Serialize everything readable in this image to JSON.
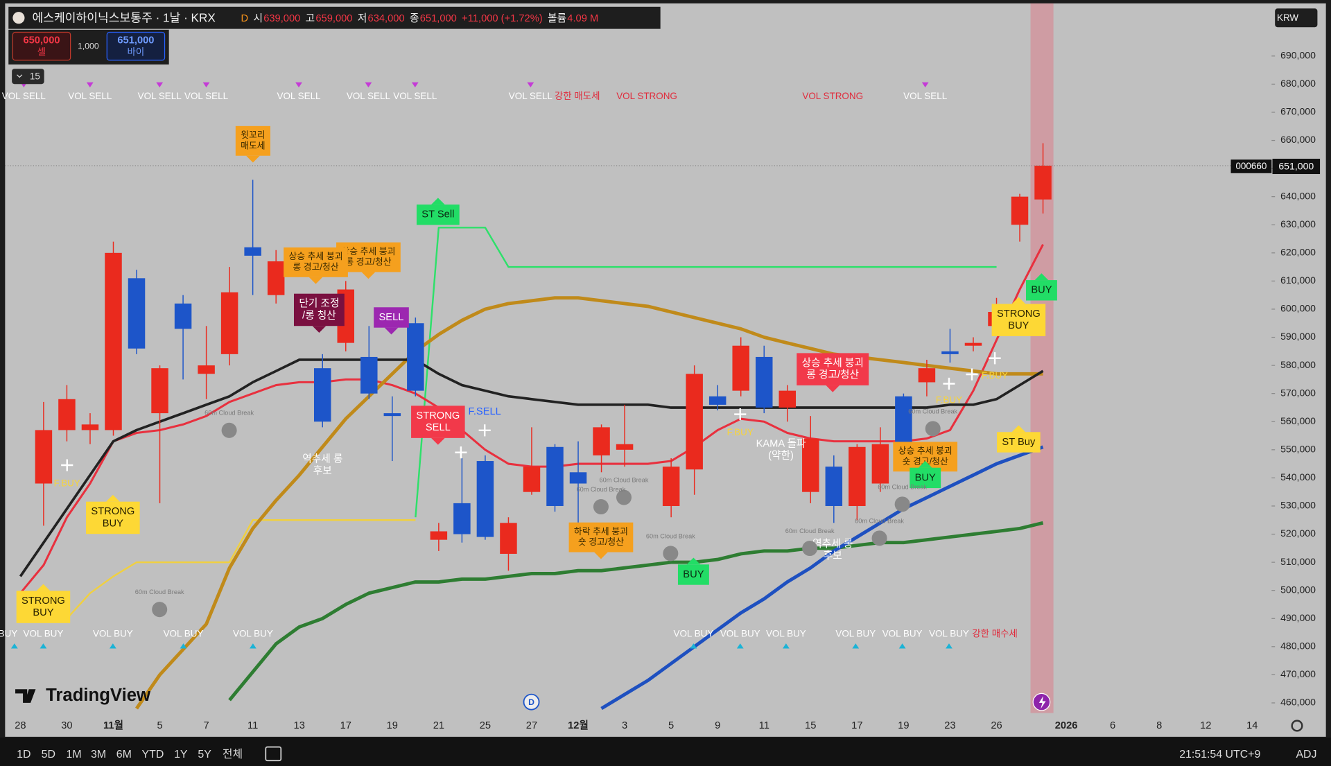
{
  "header": {
    "symbol": "에스케이하이닉스보통주 · 1날 · KRX",
    "feed": "D",
    "open_label": "시",
    "open": "639,000",
    "high_label": "고",
    "high": "659,000",
    "low_label": "저",
    "low": "634,000",
    "close_label": "종",
    "close": "651,000",
    "change": "+11,000 (+1.72%)",
    "volume_label": "볼륨",
    "volume": "4.09 M"
  },
  "order_panel": {
    "sell_price": "650,000",
    "sell_label": "셀",
    "qty": "1,000",
    "buy_price": "651,000",
    "buy_label": "바이"
  },
  "indicator_count": "15",
  "currency": "KRW",
  "price_tag": {
    "ticker": "000660",
    "price": "651,000"
  },
  "logo": "TradingView",
  "event_marker": "D",
  "toolbar": {
    "ranges": [
      "1D",
      "5D",
      "1M",
      "3M",
      "6M",
      "YTD",
      "1Y",
      "5Y",
      "전체"
    ],
    "clock": "21:51:54 UTC+9",
    "adjust": "ADJ"
  },
  "chart_data": {
    "type": "candlestick",
    "categories": [
      "28",
      null,
      "30",
      null,
      "11월",
      null,
      "5",
      null,
      "7",
      null,
      "11",
      null,
      "13",
      null,
      "17",
      null,
      "19",
      null,
      "21",
      null,
      "25",
      null,
      "27",
      null,
      "12월",
      null,
      "3",
      null,
      "5",
      null,
      "9",
      null,
      "11",
      null,
      "15",
      null,
      "17",
      null,
      "19",
      null,
      "23",
      null,
      "26",
      null,
      null,
      "2026",
      null,
      "6",
      null,
      "8",
      null,
      "12",
      null,
      "14"
    ],
    "open": [
      null,
      538000,
      557000,
      557000,
      557000,
      611000,
      563000,
      602000,
      577000,
      584000,
      622000,
      605000,
      null,
      579000,
      588000,
      583000,
      563000,
      595000,
      518000,
      531000,
      546000,
      513000,
      535000,
      551000,
      542000,
      548000,
      550000,
      null,
      530000,
      543000,
      569000,
      571000,
      583000,
      565000,
      535000,
      544000,
      530000,
      538000,
      569000,
      574000,
      585000,
      587000,
      594000,
      630000,
      639000,
      null,
      null,
      null,
      null,
      null,
      null,
      null,
      null,
      null
    ],
    "high": [
      null,
      567000,
      573000,
      563000,
      624000,
      614000,
      580000,
      605000,
      594000,
      615000,
      646000,
      621000,
      null,
      584000,
      610000,
      594000,
      569000,
      597000,
      524000,
      547000,
      548000,
      526000,
      558000,
      552000,
      553000,
      559000,
      566000,
      null,
      547000,
      580000,
      573000,
      590000,
      587000,
      573000,
      562000,
      548000,
      552000,
      558000,
      570000,
      582000,
      593000,
      590000,
      604000,
      641000,
      659000,
      null,
      null,
      null,
      null,
      null,
      null,
      null,
      null,
      null
    ],
    "low": [
      null,
      523000,
      553000,
      552000,
      555000,
      584000,
      531000,
      575000,
      568000,
      580000,
      605000,
      602000,
      null,
      558000,
      585000,
      568000,
      546000,
      569000,
      514000,
      517000,
      518000,
      507000,
      534000,
      528000,
      521000,
      542000,
      544000,
      null,
      526000,
      534000,
      564000,
      569000,
      563000,
      560000,
      531000,
      524000,
      525000,
      535000,
      545000,
      569000,
      581000,
      585000,
      592000,
      624000,
      634000,
      null,
      null,
      null,
      null,
      null,
      null,
      null,
      null,
      null
    ],
    "close": [
      null,
      557000,
      568000,
      559000,
      620000,
      586000,
      579000,
      593000,
      580000,
      606000,
      619000,
      617000,
      null,
      560000,
      607000,
      570000,
      562000,
      571000,
      521000,
      520000,
      519000,
      524000,
      544000,
      530000,
      538000,
      558000,
      552000,
      null,
      544000,
      577000,
      566000,
      587000,
      565000,
      571000,
      554000,
      530000,
      551000,
      552000,
      547000,
      579000,
      584000,
      588000,
      599000,
      640000,
      651000,
      null,
      null,
      null,
      null,
      null,
      null,
      null,
      null,
      null
    ],
    "up_color": "#ea2a1e",
    "down_color": "#1d55c9",
    "lines": [
      {
        "color": "#f0d040",
        "width": 2,
        "values": [
          null,
          490000,
          490000,
          499000,
          505000,
          510000,
          510000,
          510000,
          510000,
          510000,
          525000,
          525000,
          525000,
          525000,
          525000,
          525000,
          525000,
          525000,
          null,
          null,
          null,
          null,
          null,
          null,
          null,
          null,
          null,
          null,
          null,
          null,
          null,
          null,
          null,
          null,
          null,
          null,
          null,
          null,
          null,
          null,
          null,
          null,
          null,
          null,
          null,
          null,
          null,
          null,
          null,
          null,
          null,
          null,
          null,
          null
        ]
      },
      {
        "color": "#2ee06a",
        "width": 2,
        "values": [
          null,
          null,
          null,
          null,
          null,
          null,
          null,
          null,
          null,
          null,
          null,
          null,
          null,
          null,
          null,
          null,
          null,
          526000,
          629000,
          629000,
          629000,
          615000,
          615000,
          615000,
          615000,
          615000,
          615000,
          615000,
          615000,
          615000,
          615000,
          615000,
          615000,
          615000,
          615000,
          615000,
          615000,
          615000,
          615000,
          615000,
          615000,
          615000,
          615000,
          null,
          null,
          null,
          null,
          null,
          null,
          null,
          null,
          null,
          null,
          null
        ]
      },
      {
        "color": "#2e7d32",
        "width": 4,
        "values": [
          null,
          null,
          null,
          null,
          null,
          null,
          null,
          null,
          null,
          461000,
          471000,
          481000,
          487000,
          490000,
          495000,
          499000,
          501000,
          503000,
          503000,
          504000,
          504000,
          505000,
          506000,
          506000,
          507000,
          507000,
          508000,
          509000,
          510000,
          510000,
          511000,
          513000,
          514000,
          514000,
          515000,
          515000,
          516000,
          517000,
          517000,
          518000,
          519000,
          520000,
          521000,
          522000,
          524000,
          null,
          null,
          null,
          null,
          null,
          null,
          null,
          null,
          null
        ]
      },
      {
        "color": "#1e50c0",
        "width": 4,
        "values": [
          null,
          null,
          null,
          null,
          null,
          null,
          null,
          null,
          null,
          null,
          null,
          null,
          null,
          null,
          null,
          null,
          null,
          null,
          null,
          null,
          null,
          null,
          null,
          null,
          null,
          458000,
          463000,
          468000,
          474000,
          480000,
          486000,
          492000,
          497000,
          503000,
          508000,
          514000,
          519000,
          524000,
          529000,
          533000,
          537000,
          541000,
          545000,
          548000,
          551000,
          null,
          null,
          null,
          null,
          null,
          null,
          null,
          null,
          null
        ]
      },
      {
        "color": "#e8303e",
        "width": 2.5,
        "values": [
          499000,
          509000,
          526000,
          538000,
          553000,
          556000,
          557000,
          559000,
          562000,
          567000,
          570000,
          573000,
          574000,
          574000,
          575000,
          575000,
          573000,
          570000,
          565000,
          557000,
          550000,
          545000,
          544000,
          544000,
          545000,
          545000,
          545000,
          545000,
          546000,
          551000,
          557000,
          561000,
          560000,
          556000,
          554000,
          553000,
          553000,
          553000,
          553000,
          554000,
          557000,
          571000,
          589000,
          607000,
          623000,
          null,
          null,
          null,
          null,
          null,
          null,
          null,
          null,
          null
        ]
      },
      {
        "color": "#c08a1a",
        "width": 4,
        "values": [
          null,
          null,
          null,
          null,
          null,
          458000,
          470000,
          479000,
          488000,
          508000,
          522000,
          532000,
          541000,
          551000,
          561000,
          569000,
          577000,
          585000,
          591000,
          596000,
          600000,
          602000,
          603000,
          604000,
          604000,
          603000,
          602000,
          601000,
          599000,
          597000,
          595000,
          593000,
          590000,
          588000,
          586000,
          584000,
          583000,
          582000,
          581000,
          580000,
          579000,
          578000,
          577000,
          577000,
          577000,
          null,
          null,
          null,
          null,
          null,
          null,
          null,
          null,
          null
        ]
      },
      {
        "color": "#222222",
        "width": 3,
        "values": [
          505000,
          517000,
          529000,
          541000,
          553000,
          557000,
          560000,
          563000,
          566000,
          569000,
          574000,
          578000,
          582000,
          582000,
          582000,
          582000,
          582000,
          582000,
          577000,
          573000,
          571000,
          569000,
          568000,
          567000,
          566000,
          566000,
          566000,
          566000,
          565000,
          565000,
          565000,
          565000,
          565000,
          565000,
          565000,
          565000,
          565000,
          565000,
          565000,
          565000,
          566000,
          566000,
          568000,
          573000,
          578000,
          null,
          null,
          null,
          null,
          null,
          null,
          null,
          null,
          null
        ]
      }
    ],
    "ylim": [
      456400,
      707500
    ],
    "yticks": [
      {
        "value": 460000,
        "label": "460,000"
      },
      {
        "value": 470000,
        "label": "470,000"
      },
      {
        "value": 480000,
        "label": "480,000"
      },
      {
        "value": 490000,
        "label": "490,000"
      },
      {
        "value": 500000,
        "label": "500,000"
      },
      {
        "value": 510000,
        "label": "510,000"
      },
      {
        "value": 520000,
        "label": "520,000"
      },
      {
        "value": 530000,
        "label": "530,000"
      },
      {
        "value": 540000,
        "label": "540,000"
      },
      {
        "value": 550000,
        "label": "550,000"
      },
      {
        "value": 560000,
        "label": "560,000"
      },
      {
        "value": 570000,
        "label": "570,000"
      },
      {
        "value": 580000,
        "label": "580,000"
      },
      {
        "value": 590000,
        "label": "590,000"
      },
      {
        "value": 600000,
        "label": "600,000"
      },
      {
        "value": 610000,
        "label": "610,000"
      },
      {
        "value": 620000,
        "label": "620,000"
      },
      {
        "value": 630000,
        "label": "630,000"
      },
      {
        "value": 640000,
        "label": "640,000"
      },
      {
        "value": 650000,
        "label": "650,000"
      },
      {
        "value": 660000,
        "label": "660,000"
      },
      {
        "value": 670000,
        "label": "670,000"
      },
      {
        "value": 680000,
        "label": "680,000"
      },
      {
        "value": 690000,
        "label": "690,000"
      }
    ],
    "last_price": 651000,
    "grid": false,
    "top_signals": [
      {
        "text": "VOL SELL",
        "style": "white"
      },
      {
        "text": "VOL SELL",
        "style": "white"
      },
      {
        "text": "VOL SELL",
        "style": "white"
      },
      {
        "text": "VOL SELL",
        "style": "white"
      },
      {
        "text": "VOL SELL",
        "style": "white"
      },
      {
        "text": "VOL SELL",
        "style": "white"
      },
      {
        "text": "VOL SELL",
        "style": "white"
      },
      {
        "text": "VOL SELL",
        "style": "white"
      },
      {
        "text": "강한 매도세",
        "style": "red"
      },
      {
        "text": "VOL STRONG",
        "style": "red"
      },
      {
        "text": "VOL STRONG",
        "style": "red"
      },
      {
        "text": "VOL SELL",
        "style": "white"
      }
    ],
    "bottom_signals": [
      {
        "text": "VOL BUY",
        "style": "white"
      },
      {
        "text": "VOL BUY",
        "style": "white"
      },
      {
        "text": "VOL BUY",
        "style": "white"
      },
      {
        "text": "VOL BUY",
        "style": "white"
      },
      {
        "text": "VOL BUY",
        "style": "white"
      },
      {
        "text": "VOL BUY",
        "style": "white"
      },
      {
        "text": "VOL BUY",
        "style": "white"
      },
      {
        "text": "VOL BUY",
        "style": "white"
      },
      {
        "text": "VOL BUY",
        "style": "white"
      },
      {
        "text": "VOL BUY",
        "style": "white"
      },
      {
        "text": "VOL BUY",
        "style": "white"
      },
      {
        "text": "강한 매수세",
        "style": "red"
      }
    ],
    "annotations": [
      {
        "lines": [
          "윗꼬리",
          "매도세"
        ],
        "style": "orange"
      },
      {
        "lines": [
          "상승 추세 붕괴",
          "롱 경고/청산"
        ],
        "style": "orange"
      },
      {
        "lines": [
          "상승 추세 붕괴",
          "롱 경고/청산"
        ],
        "style": "orange"
      },
      {
        "lines": [
          "단기 조정",
          "/롱 청산"
        ],
        "style": "maroon"
      },
      {
        "lines": [
          "SELL"
        ],
        "style": "purple"
      },
      {
        "lines": [
          "ST Sell"
        ],
        "style": "green"
      },
      {
        "lines": [
          "STRONG",
          "SELL"
        ],
        "style": "red"
      },
      {
        "lines": [
          "F.SELL"
        ],
        "style": "blue-text"
      },
      {
        "lines": [
          "하락 추세 붕괴",
          "숏 경고/청산"
        ],
        "style": "orange"
      },
      {
        "lines": [
          "상승 추세 붕괴",
          "롱 경고/청산"
        ],
        "style": "red"
      },
      {
        "lines": [
          "상승 추세 붕괴",
          "숏 경고/청산"
        ],
        "style": "orange"
      },
      {
        "lines": [
          "STRONG",
          "BUY"
        ],
        "style": "yellow"
      },
      {
        "lines": [
          "STRONG",
          "BUY"
        ],
        "style": "yellow"
      },
      {
        "lines": [
          "STRONG",
          "BUY"
        ],
        "style": "yellow"
      },
      {
        "lines": [
          "BUY"
        ],
        "style": "green"
      },
      {
        "lines": [
          "BUY"
        ],
        "style": "green"
      },
      {
        "lines": [
          "BUY"
        ],
        "style": "green"
      },
      {
        "lines": [
          "ST Buy"
        ],
        "style": "yellow"
      },
      {
        "lines": [
          "역추세 롱",
          "후보"
        ],
        "style": "white-text"
      },
      {
        "lines": [
          "역추세 롱",
          "후보"
        ],
        "style": "white-text"
      },
      {
        "lines": [
          "KAMA 돌파",
          "(약한)"
        ],
        "style": "white-text"
      },
      {
        "lines": [
          "F.BUY"
        ],
        "style": "yellow-text"
      },
      {
        "lines": [
          "F.BUY"
        ],
        "style": "yellow-text"
      },
      {
        "lines": [
          "F.BUY"
        ],
        "style": "yellow-text"
      },
      {
        "lines": [
          "F.BUY"
        ],
        "style": "yellow-text"
      },
      {
        "lines": [
          "60m Cloud Break"
        ],
        "style": "cloud"
      },
      {
        "lines": [
          "60m Cloud Break"
        ],
        "style": "cloud"
      },
      {
        "lines": [
          "60m Cloud Break"
        ],
        "style": "cloud"
      },
      {
        "lines": [
          "60m Cloud Break"
        ],
        "style": "cloud"
      },
      {
        "lines": [
          "60m Cloud Break"
        ],
        "style": "cloud"
      },
      {
        "lines": [
          "60m Cloud Break"
        ],
        "style": "cloud"
      },
      {
        "lines": [
          "60m Cloud Break"
        ],
        "style": "cloud"
      },
      {
        "lines": [
          "60m Cloud Break"
        ],
        "style": "cloud"
      },
      {
        "lines": [
          "60m Cloud Break"
        ],
        "style": "cloud"
      }
    ]
  }
}
